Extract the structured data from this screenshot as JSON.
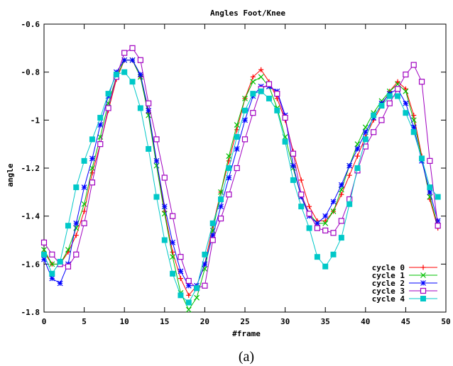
{
  "chart_data": {
    "type": "line",
    "title": "Angles Foot/Knee",
    "xlabel": "#frame",
    "ylabel": "angle",
    "caption": "(a)",
    "xlim": [
      0,
      50
    ],
    "ylim": [
      -1.8,
      -0.6
    ],
    "x_ticks": [
      0,
      5,
      10,
      15,
      20,
      25,
      30,
      35,
      40,
      45,
      50
    ],
    "y_ticks": [
      -1.8,
      -1.6,
      -1.4,
      -1.2,
      -1,
      -0.8,
      -0.6
    ],
    "x_tick_labels": [
      "0",
      "5",
      "10",
      "15",
      "20",
      "25",
      "30",
      "35",
      "40",
      "45",
      "50"
    ],
    "y_tick_labels": [
      "-1.8",
      "-1.6",
      "-1.4",
      "-1.2",
      "-1",
      "-0.8",
      "-0.6"
    ],
    "grid": false,
    "legend_position": "bottom-right",
    "series": [
      {
        "name": "cycle 0",
        "color": "#ff0000",
        "marker": "plus",
        "values": [
          -1.55,
          -1.6,
          -1.6,
          -1.55,
          -1.48,
          -1.38,
          -1.22,
          -1.1,
          -0.96,
          -0.83,
          -0.75,
          -0.75,
          -0.82,
          -0.97,
          -1.17,
          -1.38,
          -1.55,
          -1.66,
          -1.73,
          -1.69,
          -1.6,
          -1.44,
          -1.3,
          -1.17,
          -1.04,
          -0.91,
          -0.82,
          -0.79,
          -0.84,
          -0.91,
          -1.0,
          -1.13,
          -1.25,
          -1.36,
          -1.42,
          -1.42,
          -1.38,
          -1.31,
          -1.23,
          -1.15,
          -1.07,
          -1.0,
          -0.94,
          -0.88,
          -0.84,
          -0.87,
          -0.98,
          -1.15,
          -1.33,
          -1.45
        ]
      },
      {
        "name": "cycle 1",
        "color": "#00c000",
        "marker": "cross",
        "values": [
          -1.54,
          -1.6,
          -1.6,
          -1.54,
          -1.45,
          -1.35,
          -1.2,
          -1.07,
          -0.93,
          -0.82,
          -0.75,
          -0.75,
          -0.82,
          -0.98,
          -1.19,
          -1.39,
          -1.57,
          -1.72,
          -1.79,
          -1.74,
          -1.62,
          -1.46,
          -1.3,
          -1.15,
          -1.02,
          -0.91,
          -0.84,
          -0.82,
          -0.86,
          -0.95,
          -1.07,
          -1.2,
          -1.32,
          -1.39,
          -1.43,
          -1.43,
          -1.38,
          -1.29,
          -1.19,
          -1.1,
          -1.03,
          -0.97,
          -0.92,
          -0.88,
          -0.85,
          -0.88,
          -1.0,
          -1.16,
          -1.32,
          -1.44
        ]
      },
      {
        "name": "cycle 2",
        "color": "#0000ff",
        "marker": "star",
        "values": [
          -1.58,
          -1.66,
          -1.68,
          -1.6,
          -1.43,
          -1.28,
          -1.16,
          -1.02,
          -0.9,
          -0.8,
          -0.75,
          -0.75,
          -0.81,
          -0.96,
          -1.17,
          -1.36,
          -1.51,
          -1.63,
          -1.69,
          -1.69,
          -1.6,
          -1.48,
          -1.36,
          -1.24,
          -1.12,
          -1.0,
          -0.9,
          -0.86,
          -0.86,
          -0.88,
          -0.98,
          -1.19,
          -1.32,
          -1.4,
          -1.43,
          -1.4,
          -1.34,
          -1.27,
          -1.19,
          -1.12,
          -1.05,
          -0.99,
          -0.93,
          -0.89,
          -0.87,
          -0.93,
          -1.03,
          -1.17,
          -1.3,
          -1.42
        ]
      },
      {
        "name": "cycle 3",
        "color": "#a000c0",
        "marker": "square-open",
        "values": [
          -1.51,
          -1.56,
          -1.6,
          -1.61,
          -1.56,
          -1.43,
          -1.26,
          -1.1,
          -0.95,
          -0.82,
          -0.72,
          -0.7,
          -0.75,
          -0.93,
          -1.08,
          -1.24,
          -1.4,
          -1.57,
          -1.67,
          -1.7,
          -1.69,
          -1.5,
          -1.41,
          -1.31,
          -1.2,
          -1.08,
          -0.97,
          -0.87,
          -0.85,
          -0.89,
          -0.99,
          -1.14,
          -1.31,
          -1.39,
          -1.45,
          -1.46,
          -1.47,
          -1.42,
          -1.33,
          -1.21,
          -1.11,
          -1.05,
          -1.0,
          -0.93,
          -0.87,
          -0.81,
          -0.77,
          -0.84,
          -1.17,
          -1.44
        ]
      },
      {
        "name": "cycle 4",
        "color": "#00c8c8",
        "marker": "square-filled",
        "values": [
          -1.56,
          -1.64,
          -1.59,
          -1.44,
          -1.28,
          -1.17,
          -1.08,
          -0.99,
          -0.89,
          -0.81,
          -0.8,
          -0.84,
          -0.95,
          -1.12,
          -1.32,
          -1.5,
          -1.64,
          -1.73,
          -1.76,
          -1.7,
          -1.56,
          -1.43,
          -1.33,
          -1.2,
          -1.07,
          -0.96,
          -0.89,
          -0.88,
          -0.91,
          -0.96,
          -1.09,
          -1.25,
          -1.36,
          -1.45,
          -1.57,
          -1.61,
          -1.56,
          -1.49,
          -1.35,
          -1.2,
          -1.08,
          -0.98,
          -0.94,
          -0.9,
          -0.9,
          -0.97,
          -1.05,
          -1.16,
          -1.28,
          -1.32
        ]
      }
    ]
  }
}
